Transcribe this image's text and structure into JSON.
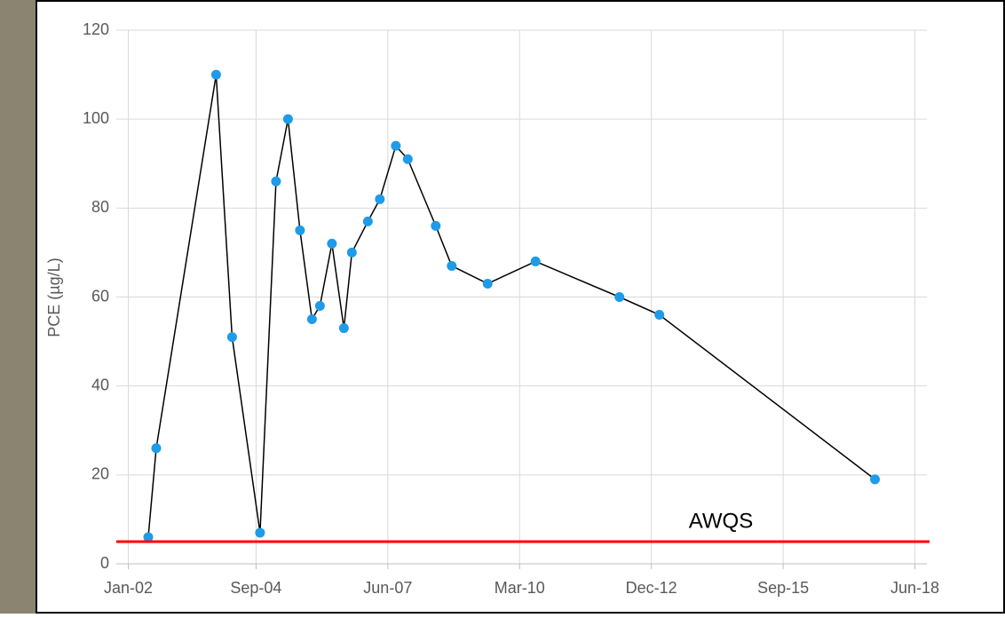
{
  "chart_data": {
    "type": "line",
    "ylabel": "PCE (µg/L)",
    "x": [
      "2002-06",
      "2002-08",
      "2003-11",
      "2004-03",
      "2004-10",
      "2005-02",
      "2005-05",
      "2005-08",
      "2005-11",
      "2006-01",
      "2006-04",
      "2006-07",
      "2006-09",
      "2007-01",
      "2007-04",
      "2007-08",
      "2007-11",
      "2008-06",
      "2008-10",
      "2009-07",
      "2010-07",
      "2012-04",
      "2013-02",
      "2017-08"
    ],
    "series": [
      {
        "color": "#000000",
        "marker_color": "#1e9be9",
        "values": [
          6,
          26,
          110,
          51,
          7,
          86,
          100,
          75,
          55,
          58,
          72,
          53,
          70,
          77,
          82,
          94,
          91,
          76,
          67,
          63,
          68,
          60,
          56,
          19
        ]
      }
    ],
    "xlim": [
      "2001-10",
      "2018-09"
    ],
    "xticks": [
      {
        "value": "2002-01",
        "label": "Jan-02"
      },
      {
        "value": "2004-09",
        "label": "Sep-04"
      },
      {
        "value": "2007-06",
        "label": "Jun-07"
      },
      {
        "value": "2010-03",
        "label": "Mar-10"
      },
      {
        "value": "2012-12",
        "label": "Dec-12"
      },
      {
        "value": "2015-09",
        "label": "Sep-15"
      },
      {
        "value": "2018-06",
        "label": "Jun-18"
      }
    ],
    "ylim": [
      0,
      120
    ],
    "yticks": [
      0,
      20,
      40,
      60,
      80,
      100,
      120
    ],
    "grid": true,
    "threshold": {
      "value": 5,
      "label": "AWQS",
      "color": "#ff0000"
    }
  }
}
